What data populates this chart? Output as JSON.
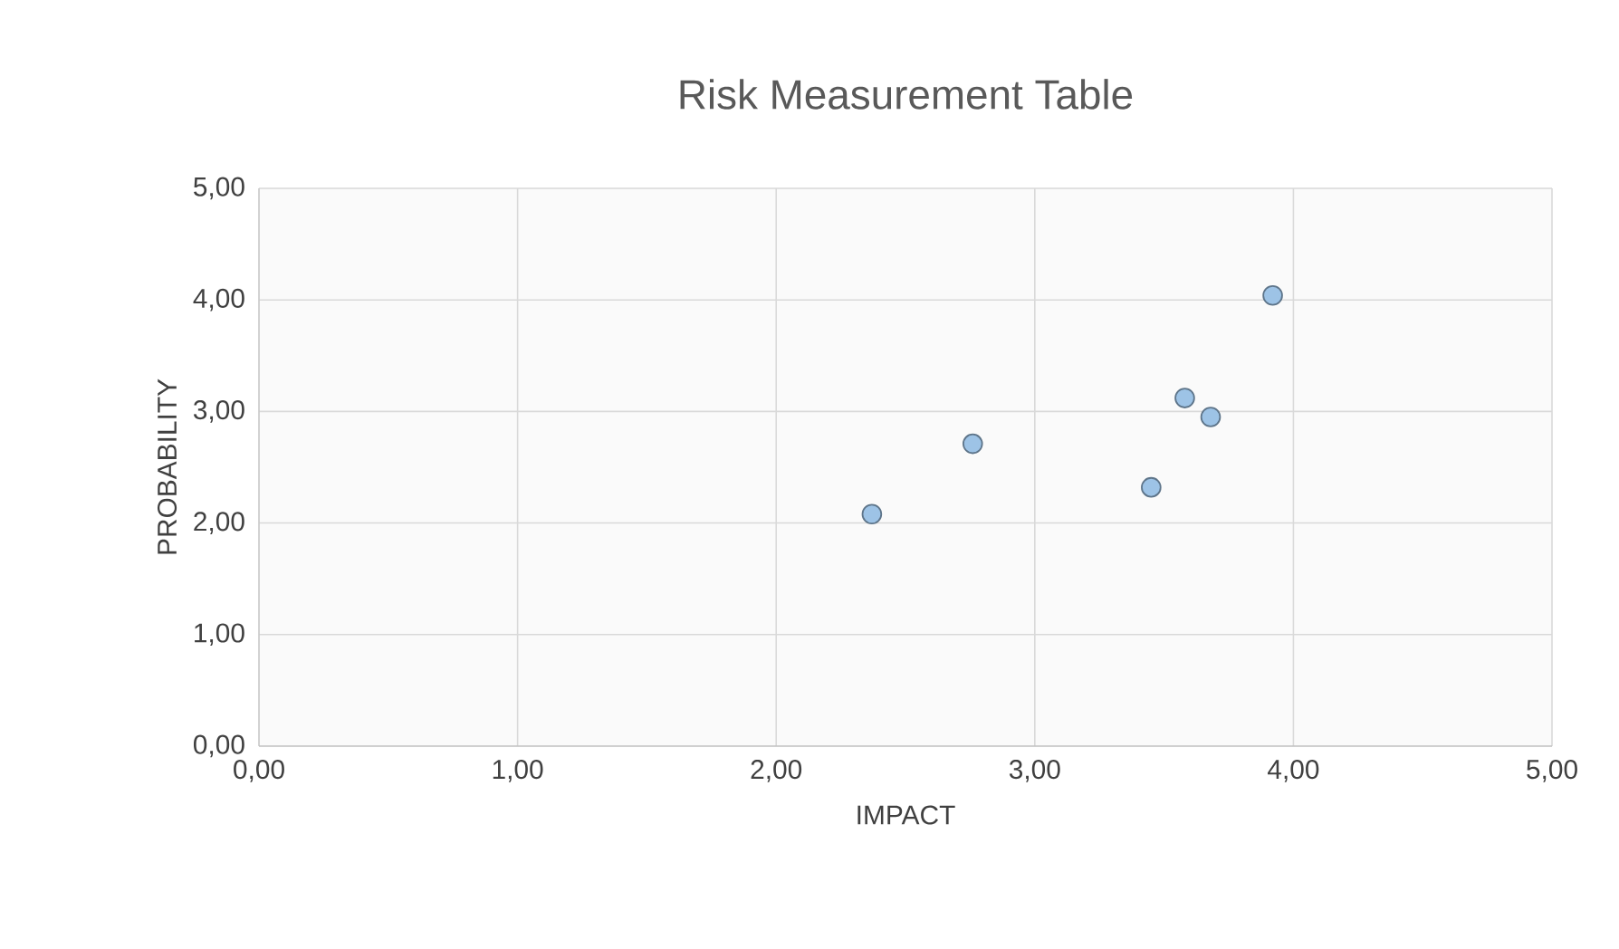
{
  "chart_data": {
    "type": "scatter",
    "title": "Risk Measurement Table",
    "xlabel": "IMPACT",
    "ylabel": "PROBABILITY",
    "series": [
      {
        "color": "#9dc3e6",
        "x": [
          2.37,
          2.76,
          3.45,
          3.58,
          3.68,
          3.92
        ],
        "values": [
          2.08,
          2.71,
          2.32,
          3.12,
          2.95,
          4.04
        ]
      }
    ],
    "xlim": [
      0,
      5
    ],
    "ylim": [
      0,
      5
    ],
    "xticks": [
      {
        "value": 0,
        "label": "0,00"
      },
      {
        "value": 1,
        "label": "1,00"
      },
      {
        "value": 2,
        "label": "2,00"
      },
      {
        "value": 3,
        "label": "3,00"
      },
      {
        "value": 4,
        "label": "4,00"
      },
      {
        "value": 5,
        "label": "5,00"
      }
    ],
    "yticks": [
      {
        "value": 0,
        "label": "0,00"
      },
      {
        "value": 1,
        "label": "1,00"
      },
      {
        "value": 2,
        "label": "2,00"
      },
      {
        "value": 3,
        "label": "3,00"
      },
      {
        "value": 4,
        "label": "4,00"
      },
      {
        "value": 5,
        "label": "5,00"
      }
    ],
    "grid": true,
    "marker": "circle"
  }
}
